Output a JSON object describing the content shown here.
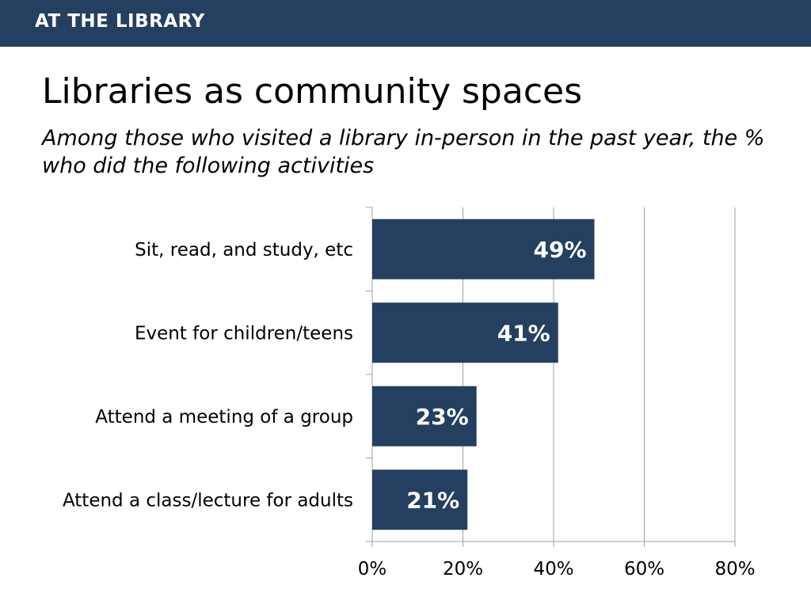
{
  "header": {
    "title": "AT THE LIBRARY"
  },
  "slide": {
    "title": "Libraries as community spaces",
    "subtitle": "Among those who visited a library in-person in the past year, the % who did the following activities"
  },
  "colors": {
    "header": "#243f60",
    "bar": "#243f60",
    "grid": "#a0a0a0"
  },
  "chart_data": {
    "type": "bar",
    "orientation": "horizontal",
    "categories": [
      "Sit, read, and study, etc",
      "Event for children/teens",
      "Attend a meeting of a group",
      "Attend a class/lecture for adults"
    ],
    "values": [
      49,
      41,
      23,
      21
    ],
    "value_labels": [
      "49%",
      "41%",
      "23%",
      "21%"
    ],
    "xlim": [
      0,
      80
    ],
    "xticks": [
      0,
      20,
      40,
      60,
      80
    ],
    "xtick_labels": [
      "0%",
      "20%",
      "40%",
      "60%",
      "80%"
    ],
    "grid": true,
    "legend": "none"
  }
}
